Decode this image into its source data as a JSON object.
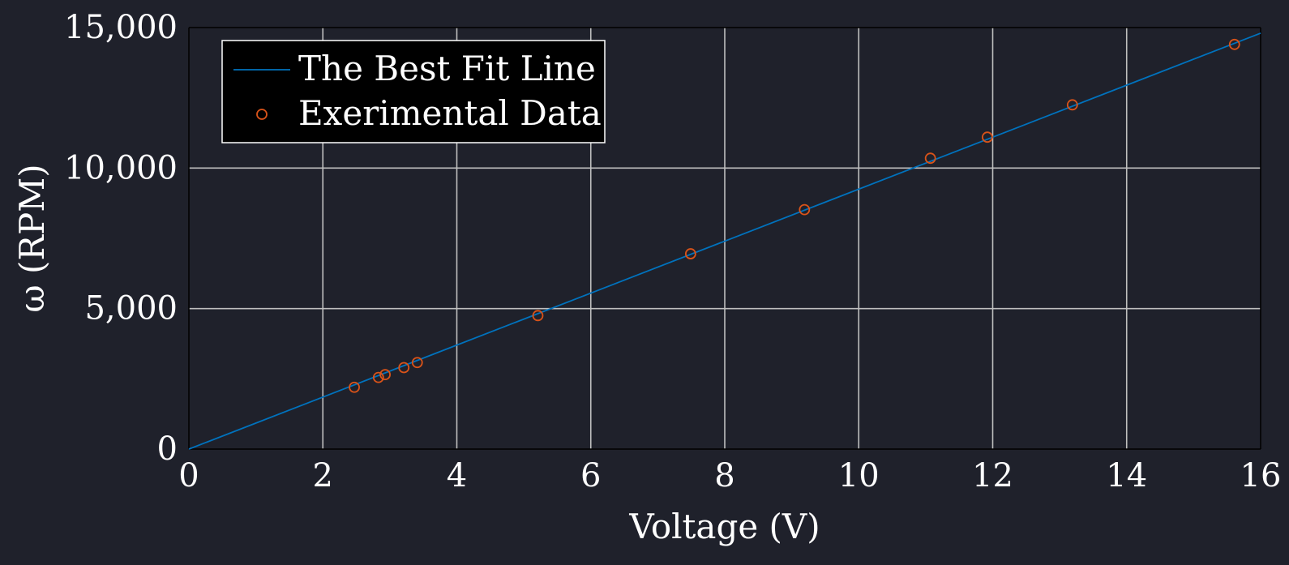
{
  "chart_data": {
    "type": "scatter",
    "xlabel": "Voltage (V)",
    "ylabel": "ω (RPM)",
    "xlim": [
      0,
      16
    ],
    "ylim": [
      0,
      15000
    ],
    "x_ticks": [
      0,
      2,
      4,
      6,
      8,
      10,
      12,
      14,
      16
    ],
    "y_ticks": [
      0,
      5000,
      10000,
      15000
    ],
    "x_tick_labels": [
      "0",
      "2",
      "4",
      "6",
      "8",
      "10",
      "12",
      "14",
      "16"
    ],
    "y_tick_labels": [
      "0",
      "5,000",
      "10,000",
      "15,000"
    ],
    "grid": true,
    "legend_position": "top-left",
    "series": [
      {
        "name": "The Best Fit Line",
        "kind": "line",
        "color": "#0072bd",
        "x": [
          0,
          16
        ],
        "y": [
          0,
          14800
        ]
      },
      {
        "name": "Exerimental Data",
        "kind": "scatter",
        "marker": "circle-open",
        "color": "#d95319",
        "x": [
          2.47,
          2.83,
          2.93,
          3.21,
          3.41,
          5.21,
          7.49,
          9.19,
          11.07,
          11.92,
          13.19,
          15.61
        ],
        "y": [
          2200,
          2550,
          2650,
          2900,
          3080,
          4750,
          6950,
          8520,
          10350,
          11100,
          12250,
          14400
        ]
      }
    ]
  }
}
